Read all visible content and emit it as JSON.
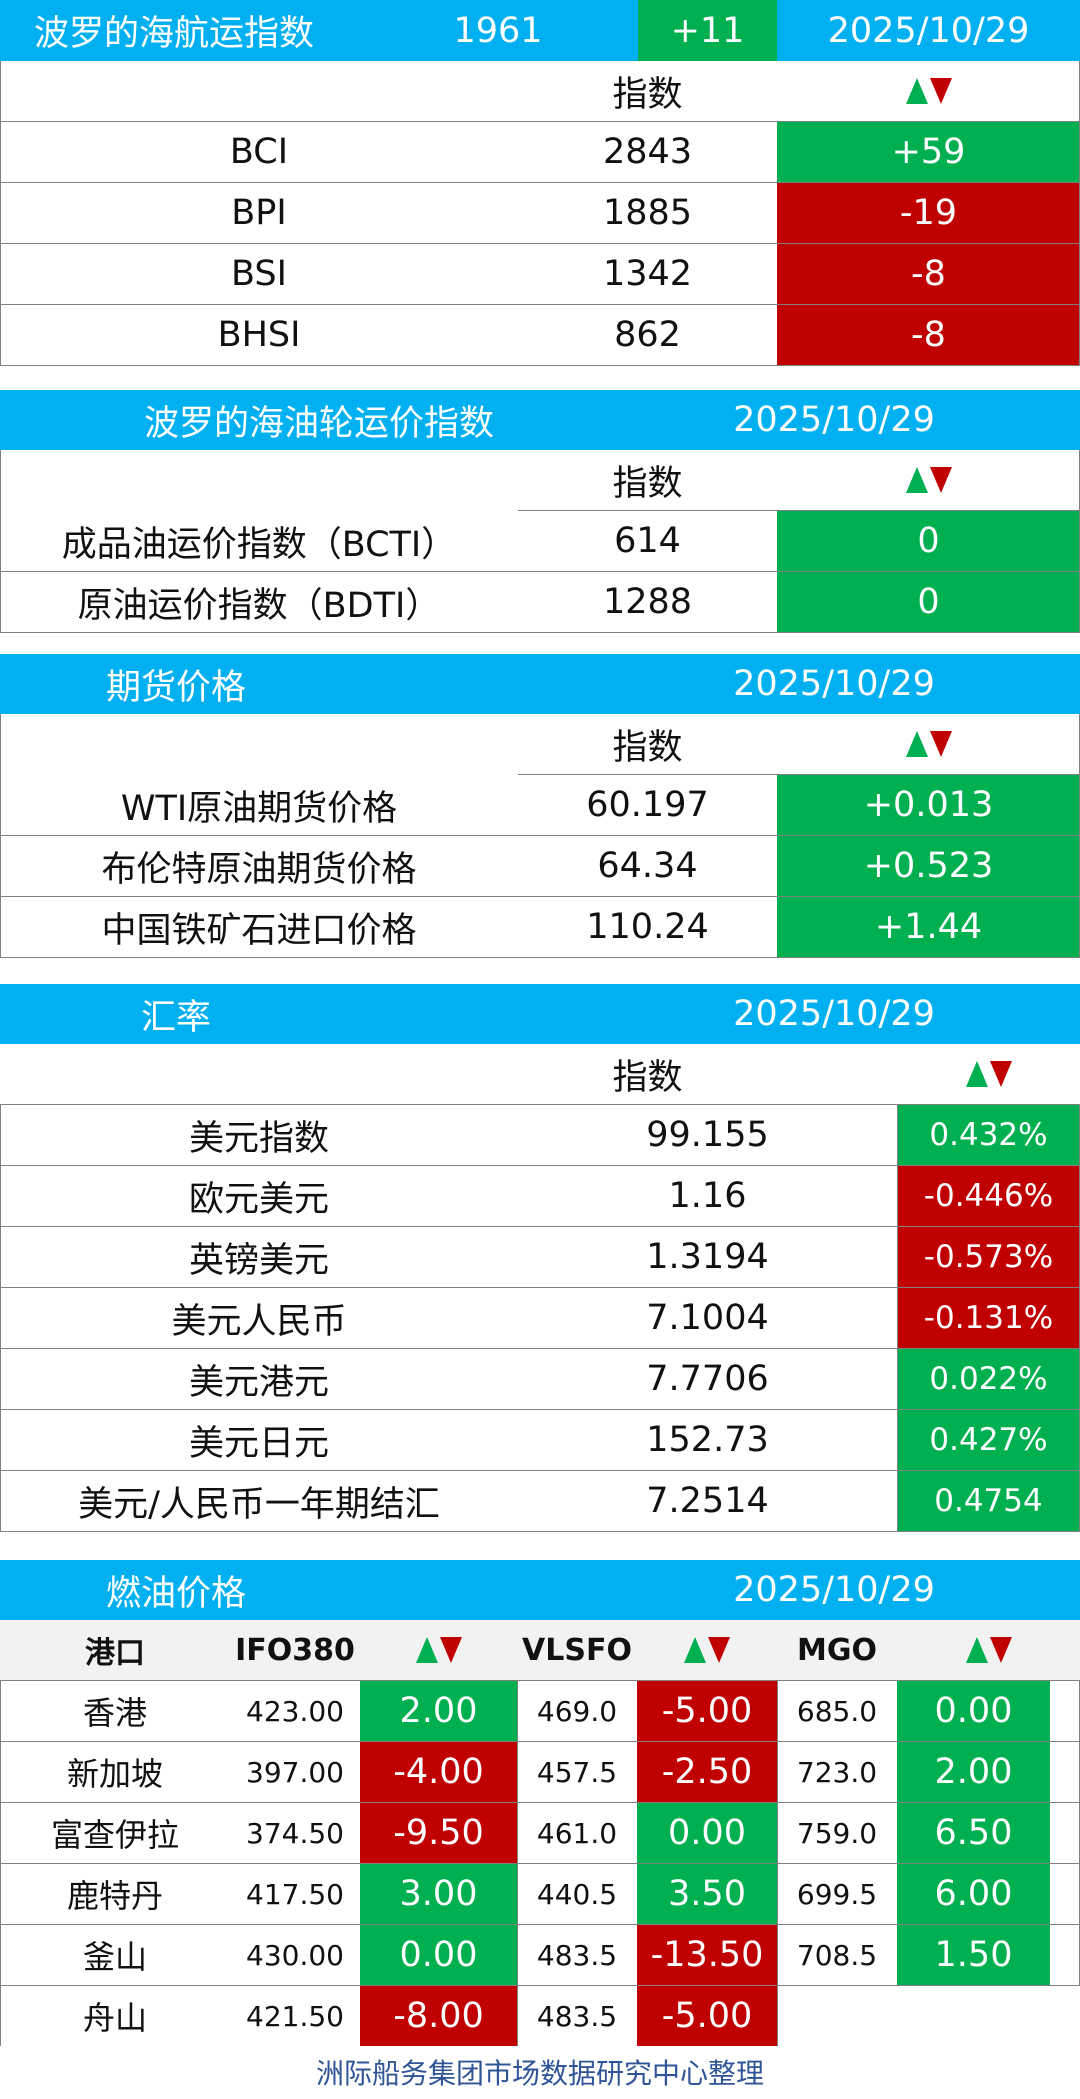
{
  "bdi": {
    "title": "波罗的海航运指数",
    "value": "1961",
    "change": "+11",
    "date": "2025/10/29",
    "col_index": "指数",
    "rows": [
      {
        "name": "BCI",
        "value": "2843",
        "change": "+59"
      },
      {
        "name": "BPI",
        "value": "1885",
        "change": "-19"
      },
      {
        "name": "BSI",
        "value": "1342",
        "change": "-8"
      },
      {
        "name": "BHSI",
        "value": "862",
        "change": "-8"
      }
    ]
  },
  "tanker": {
    "title": "波罗的海油轮运价指数",
    "date": "2025/10/29",
    "col_index": "指数",
    "rows": [
      {
        "name": "成品油运价指数（BCTI）",
        "value": "614",
        "change": "0"
      },
      {
        "name": "原油运价指数（BDTI）",
        "value": "1288",
        "change": "0"
      }
    ]
  },
  "futures": {
    "title": "期货价格",
    "date": "2025/10/29",
    "col_index": "指数",
    "rows": [
      {
        "name": "WTI原油期货价格",
        "value": "60.197",
        "change": "+0.013"
      },
      {
        "name": "布伦特原油期货价格",
        "value": "64.34",
        "change": "+0.523"
      },
      {
        "name": "中国铁矿石进口价格",
        "value": "110.24",
        "change": "+1.44"
      }
    ]
  },
  "fx": {
    "title": "汇率",
    "date": "2025/10/29",
    "col_index": "指数",
    "rows": [
      {
        "name": "美元指数",
        "value": "99.155",
        "change": "0.432%"
      },
      {
        "name": "欧元美元",
        "value": "1.16",
        "change": "-0.446%"
      },
      {
        "name": "英镑美元",
        "value": "1.3194",
        "change": "-0.573%"
      },
      {
        "name": "美元人民币",
        "value": "7.1004",
        "change": "-0.131%"
      },
      {
        "name": "美元港元",
        "value": "7.7706",
        "change": "0.022%"
      },
      {
        "name": "美元日元",
        "value": "152.73",
        "change": "0.427%"
      },
      {
        "name": "美元/人民币一年期结汇",
        "value": "7.2514",
        "change": "0.4754"
      }
    ]
  },
  "bunker": {
    "title": "燃油价格",
    "date": "2025/10/29",
    "col_port": "港口",
    "col_ifo": "IFO380",
    "col_vlsfo": "VLSFO",
    "col_mgo": "MGO",
    "rows": [
      {
        "port": "香港",
        "ifo": "423.00",
        "ifo_chg": "2.00",
        "vlsfo": "469.0",
        "vlsfo_chg": "-5.00",
        "mgo": "685.0",
        "mgo_chg": "0.00"
      },
      {
        "port": "新加坡",
        "ifo": "397.00",
        "ifo_chg": "-4.00",
        "vlsfo": "457.5",
        "vlsfo_chg": "-2.50",
        "mgo": "723.0",
        "mgo_chg": "2.00"
      },
      {
        "port": "富查伊拉",
        "ifo": "374.50",
        "ifo_chg": "-9.50",
        "vlsfo": "461.0",
        "vlsfo_chg": "0.00",
        "mgo": "759.0",
        "mgo_chg": "6.50"
      },
      {
        "port": "鹿特丹",
        "ifo": "417.50",
        "ifo_chg": "3.00",
        "vlsfo": "440.5",
        "vlsfo_chg": "3.50",
        "mgo": "699.5",
        "mgo_chg": "6.00"
      },
      {
        "port": "釜山",
        "ifo": "430.00",
        "ifo_chg": "0.00",
        "vlsfo": "483.5",
        "vlsfo_chg": "-13.50",
        "mgo": "708.5",
        "mgo_chg": "1.50"
      },
      {
        "port": "舟山",
        "ifo": "421.50",
        "ifo_chg": "-8.00",
        "vlsfo": "483.5",
        "vlsfo_chg": "-5.00",
        "mgo": "",
        "mgo_chg": ""
      }
    ]
  },
  "footer": "洲际船务集团市场数据研究中心整理",
  "colors": {
    "header_blue": "#00b0f0",
    "up_green": "#00b050",
    "down_red": "#c00000",
    "footer_text": "#2f5597"
  }
}
